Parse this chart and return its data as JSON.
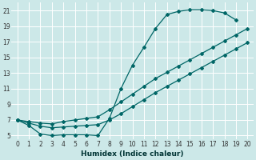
{
  "xlabel": "Humidex (Indice chaleur)",
  "bg_color": "#cce8e8",
  "grid_color": "#ffffff",
  "line_color": "#006666",
  "xlim": [
    -0.5,
    20.5
  ],
  "ylim": [
    4.5,
    22
  ],
  "xticks": [
    0,
    1,
    2,
    3,
    4,
    5,
    6,
    7,
    8,
    9,
    10,
    11,
    12,
    13,
    14,
    15,
    16,
    17,
    18,
    19,
    20
  ],
  "yticks": [
    5,
    7,
    9,
    11,
    13,
    15,
    17,
    19,
    21
  ],
  "series_max_x": [
    0,
    1,
    2,
    3,
    4,
    5,
    6,
    7,
    8,
    9,
    10,
    11,
    12,
    13,
    14,
    15,
    16,
    17,
    18,
    19
  ],
  "series_max_y": [
    7.0,
    6.3,
    5.2,
    5.0,
    5.1,
    5.1,
    5.1,
    5.0,
    7.2,
    11.0,
    14.0,
    16.3,
    18.7,
    20.5,
    20.9,
    21.1,
    21.1,
    21.0,
    20.7,
    19.8
  ],
  "series_mean_x": [
    0,
    1,
    2,
    3,
    4,
    5,
    6,
    7,
    8,
    9,
    10,
    11,
    12,
    13,
    14,
    15,
    16,
    17,
    18,
    19,
    20
  ],
  "series_mean_y": [
    7.0,
    6.8,
    6.6,
    6.5,
    6.8,
    7.0,
    7.2,
    7.4,
    8.3,
    9.3,
    10.3,
    11.3,
    12.3,
    13.1,
    13.9,
    14.7,
    15.5,
    16.3,
    17.1,
    17.9,
    18.7
  ],
  "series_min_x": [
    0,
    1,
    2,
    3,
    4,
    5,
    6,
    7,
    8,
    9,
    10,
    11,
    12,
    13,
    14,
    15,
    16,
    17,
    18,
    19,
    20
  ],
  "series_min_y": [
    7.0,
    6.6,
    6.2,
    6.0,
    6.1,
    6.2,
    6.3,
    6.4,
    7.0,
    7.8,
    8.7,
    9.6,
    10.5,
    11.3,
    12.1,
    12.9,
    13.7,
    14.5,
    15.3,
    16.1,
    16.9
  ]
}
